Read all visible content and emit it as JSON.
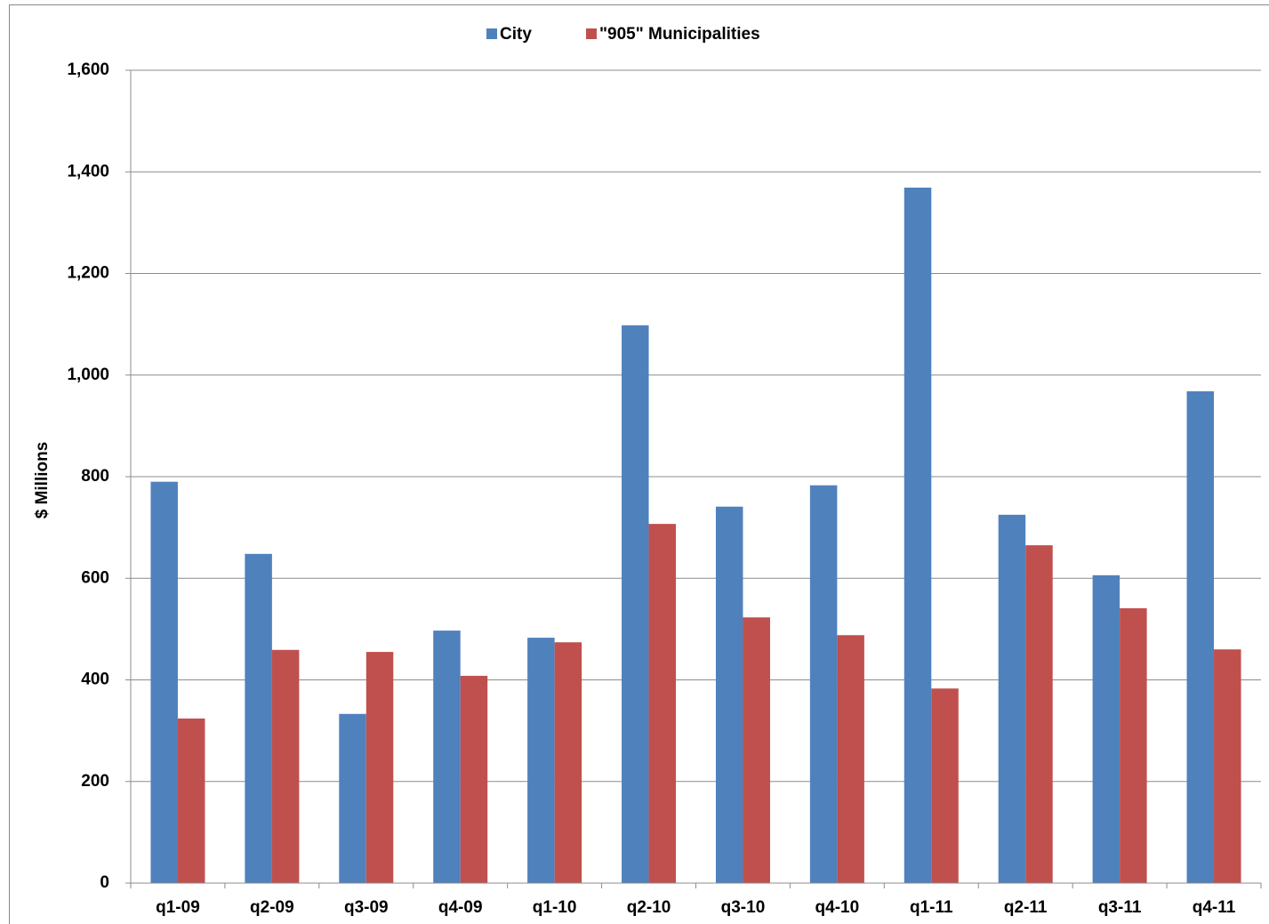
{
  "chart_data": {
    "type": "bar",
    "y_label": "$ Millions",
    "categories": [
      "q1-09",
      "q2-09",
      "q3-09",
      "q4-09",
      "q1-10",
      "q2-10",
      "q3-10",
      "q4-10",
      "q1-11",
      "q2-11",
      "q3-11",
      "q4-11"
    ],
    "series": [
      {
        "name": "City",
        "color": "#4f81bd",
        "values": [
          790,
          648,
          333,
          497,
          483,
          1098,
          741,
          783,
          1369,
          725,
          606,
          968
        ]
      },
      {
        "name": "\"905\" Municipalities",
        "color": "#c0504d",
        "values": [
          324,
          459,
          455,
          408,
          474,
          707,
          523,
          488,
          383,
          665,
          541,
          460
        ]
      }
    ],
    "ylim": [
      0,
      1600
    ],
    "yticks": [
      0,
      200,
      400,
      600,
      800,
      {
        "value": 1000,
        "label": "1,000"
      },
      {
        "value": 1200,
        "label": "1,200"
      },
      {
        "value": 1400,
        "label": "1,400"
      },
      {
        "value": 1600,
        "label": "1,600"
      }
    ],
    "grid": true,
    "legend": "top"
  }
}
